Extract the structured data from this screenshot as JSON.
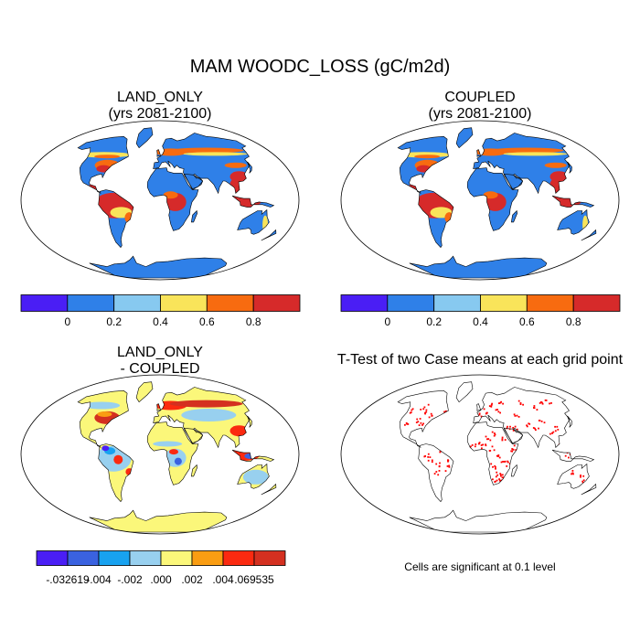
{
  "main_title": "MAM WOODC_LOSS (gC/m2d)",
  "footnote": "Cells are significant at 0.1 level",
  "colors": {
    "ocean": "#ffffff",
    "coast": "#000000",
    "ttest": "#ff0000"
  },
  "chart_data": [
    {
      "type": "heatmap",
      "title": "LAND_ONLY",
      "subtitle": "(yrs 2081-2100)",
      "projection": "Robinson",
      "levels": [
        "0",
        "0.2",
        "0.4",
        "0.6",
        "0.8"
      ],
      "colorbar_colors": [
        "#4a1ef5",
        "#2f80e8",
        "#87c9f0",
        "#f9e45a",
        "#f76b10",
        "#d62a2a"
      ]
    },
    {
      "type": "heatmap",
      "title": "COUPLED",
      "subtitle": "(yrs 2081-2100)",
      "projection": "Robinson",
      "levels": [
        "0",
        "0.2",
        "0.4",
        "0.6",
        "0.8"
      ],
      "colorbar_colors": [
        "#4a1ef5",
        "#2f80e8",
        "#87c9f0",
        "#f9e45a",
        "#f76b10",
        "#d62a2a"
      ]
    },
    {
      "type": "heatmap",
      "title": "LAND_ONLY",
      "subtitle": "- COUPLED",
      "projection": "Robinson",
      "levels": [
        "-.032619",
        "-.004",
        "-.002",
        ".000",
        ".002",
        ".004",
        ".069535"
      ],
      "colorbar_colors": [
        "#4a1ef5",
        "#3a62e0",
        "#18a2f0",
        "#98d0ef",
        "#fbf77a",
        "#fa9d12",
        "#fb2a10",
        "#d43020"
      ]
    },
    {
      "type": "heatmap",
      "title": "T-Test of two Case means at each grid point",
      "subtitle": "",
      "projection": "Robinson"
    }
  ]
}
